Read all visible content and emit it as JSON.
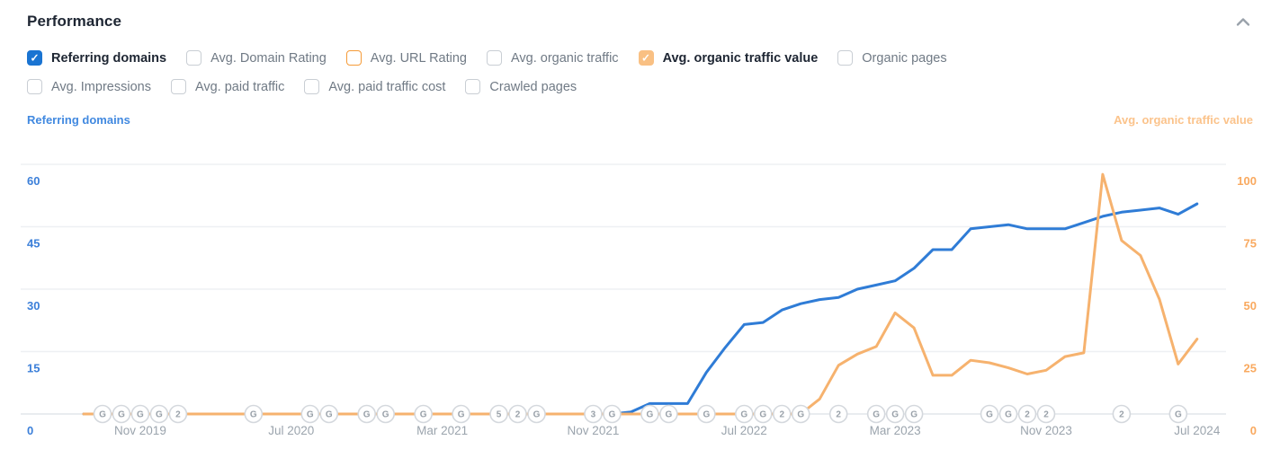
{
  "header": {
    "title": "Performance",
    "collapse_icon": "chevron-up"
  },
  "metric_toggles": {
    "row1": [
      {
        "label": "Referring domains",
        "checked": true,
        "style": "blue"
      },
      {
        "label": "Avg. Domain Rating",
        "checked": false,
        "style": "default"
      },
      {
        "label": "Avg. URL Rating",
        "checked": false,
        "style": "orange-border"
      },
      {
        "label": "Avg. organic traffic",
        "checked": false,
        "style": "default"
      },
      {
        "label": "Avg. organic traffic value",
        "checked": true,
        "style": "orange"
      },
      {
        "label": "Organic pages",
        "checked": false,
        "style": "default"
      }
    ],
    "row2": [
      {
        "label": "Avg. Impressions",
        "checked": false,
        "style": "default"
      },
      {
        "label": "Avg. paid traffic",
        "checked": false,
        "style": "default"
      },
      {
        "label": "Avg. paid traffic cost",
        "checked": false,
        "style": "default"
      },
      {
        "label": "Crawled pages",
        "checked": false,
        "style": "default"
      }
    ]
  },
  "chart_data": {
    "type": "line",
    "x_unit": "month",
    "x_start": "Aug 2019",
    "x_end": "Jul 2024",
    "x_point_count": 60,
    "grid": true,
    "x_tick_labels": [
      {
        "index": 3,
        "label": "Nov 2019"
      },
      {
        "index": 11,
        "label": "Jul 2020"
      },
      {
        "index": 19,
        "label": "Mar 2021"
      },
      {
        "index": 27,
        "label": "Nov 2021"
      },
      {
        "index": 35,
        "label": "Jul 2022"
      },
      {
        "index": 43,
        "label": "Mar 2023"
      },
      {
        "index": 51,
        "label": "Nov 2023"
      },
      {
        "index": 59,
        "label": "Jul 2024"
      }
    ],
    "left_axis": {
      "label": "Referring domains",
      "ticks": [
        0,
        15,
        30,
        45,
        60
      ],
      "range": [
        0,
        60
      ],
      "tick_color": "#3b7fd9"
    },
    "right_axis": {
      "label": "Avg. organic traffic value",
      "ticks": [
        0,
        25,
        50,
        75,
        100
      ],
      "range": [
        0,
        100
      ],
      "tick_color": "#f9a95f"
    },
    "series": [
      {
        "name": "Referring domains",
        "axis": "left",
        "color": "#2f7cd6",
        "values": [
          0,
          0,
          0,
          0,
          0,
          0,
          0,
          0,
          0,
          0,
          0,
          0,
          0,
          0,
          0,
          0,
          0,
          0,
          0,
          0,
          0,
          0,
          0,
          0,
          0,
          0,
          0,
          0,
          0,
          0.5,
          2.5,
          2.5,
          2.5,
          10,
          16,
          21.5,
          22,
          25,
          26.5,
          27.5,
          28,
          30,
          31,
          32,
          35,
          39.5,
          39.5,
          44.5,
          45,
          45.5,
          44.5,
          44.5,
          44.5,
          46,
          47.5,
          48.5,
          49,
          49.5,
          48,
          50.5
        ]
      },
      {
        "name": "Avg. organic traffic value",
        "axis": "right",
        "color": "#f6b26e",
        "values": [
          0,
          0,
          0,
          0,
          0,
          0,
          0,
          0,
          0,
          0,
          0,
          0,
          0,
          0,
          0,
          0,
          0,
          0,
          0,
          0,
          0,
          0,
          0,
          0,
          0,
          0,
          0,
          0,
          0,
          0,
          0,
          0,
          0,
          0,
          0,
          0,
          0,
          0,
          0,
          6,
          19.5,
          24,
          27,
          40.5,
          34.5,
          15.5,
          15.5,
          21.5,
          20.5,
          18.5,
          16,
          17.5,
          23,
          24.5,
          96,
          69.5,
          63.5,
          46,
          20,
          30
        ]
      }
    ],
    "timeline_markers": [
      {
        "index": 1,
        "label": "G"
      },
      {
        "index": 2,
        "label": "G"
      },
      {
        "index": 3,
        "label": "G"
      },
      {
        "index": 4,
        "label": "G"
      },
      {
        "index": 5,
        "label": "2"
      },
      {
        "index": 9,
        "label": "G"
      },
      {
        "index": 12,
        "label": "G"
      },
      {
        "index": 13,
        "label": "G"
      },
      {
        "index": 15,
        "label": "G"
      },
      {
        "index": 16,
        "label": "G"
      },
      {
        "index": 18,
        "label": "G"
      },
      {
        "index": 20,
        "label": "G"
      },
      {
        "index": 22,
        "label": "5"
      },
      {
        "index": 23,
        "label": "2"
      },
      {
        "index": 24,
        "label": "G"
      },
      {
        "index": 27,
        "label": "3"
      },
      {
        "index": 28,
        "label": "G"
      },
      {
        "index": 30,
        "label": "G"
      },
      {
        "index": 31,
        "label": "G"
      },
      {
        "index": 33,
        "label": "G"
      },
      {
        "index": 35,
        "label": "G"
      },
      {
        "index": 36,
        "label": "G"
      },
      {
        "index": 37,
        "label": "2"
      },
      {
        "index": 38,
        "label": "G"
      },
      {
        "index": 40,
        "label": "2"
      },
      {
        "index": 42,
        "label": "G"
      },
      {
        "index": 43,
        "label": "G"
      },
      {
        "index": 44,
        "label": "G"
      },
      {
        "index": 48,
        "label": "G"
      },
      {
        "index": 49,
        "label": "G"
      },
      {
        "index": 50,
        "label": "2"
      },
      {
        "index": 51,
        "label": "2"
      },
      {
        "index": 55,
        "label": "2"
      },
      {
        "index": 58,
        "label": "G"
      }
    ],
    "colors": {
      "gridline": "#eef0f3",
      "baseline": "#e2e6ea",
      "badge_border": "#d4d8dd",
      "badge_text": "#99a1a9",
      "x_label": "#9ba4ad"
    }
  }
}
